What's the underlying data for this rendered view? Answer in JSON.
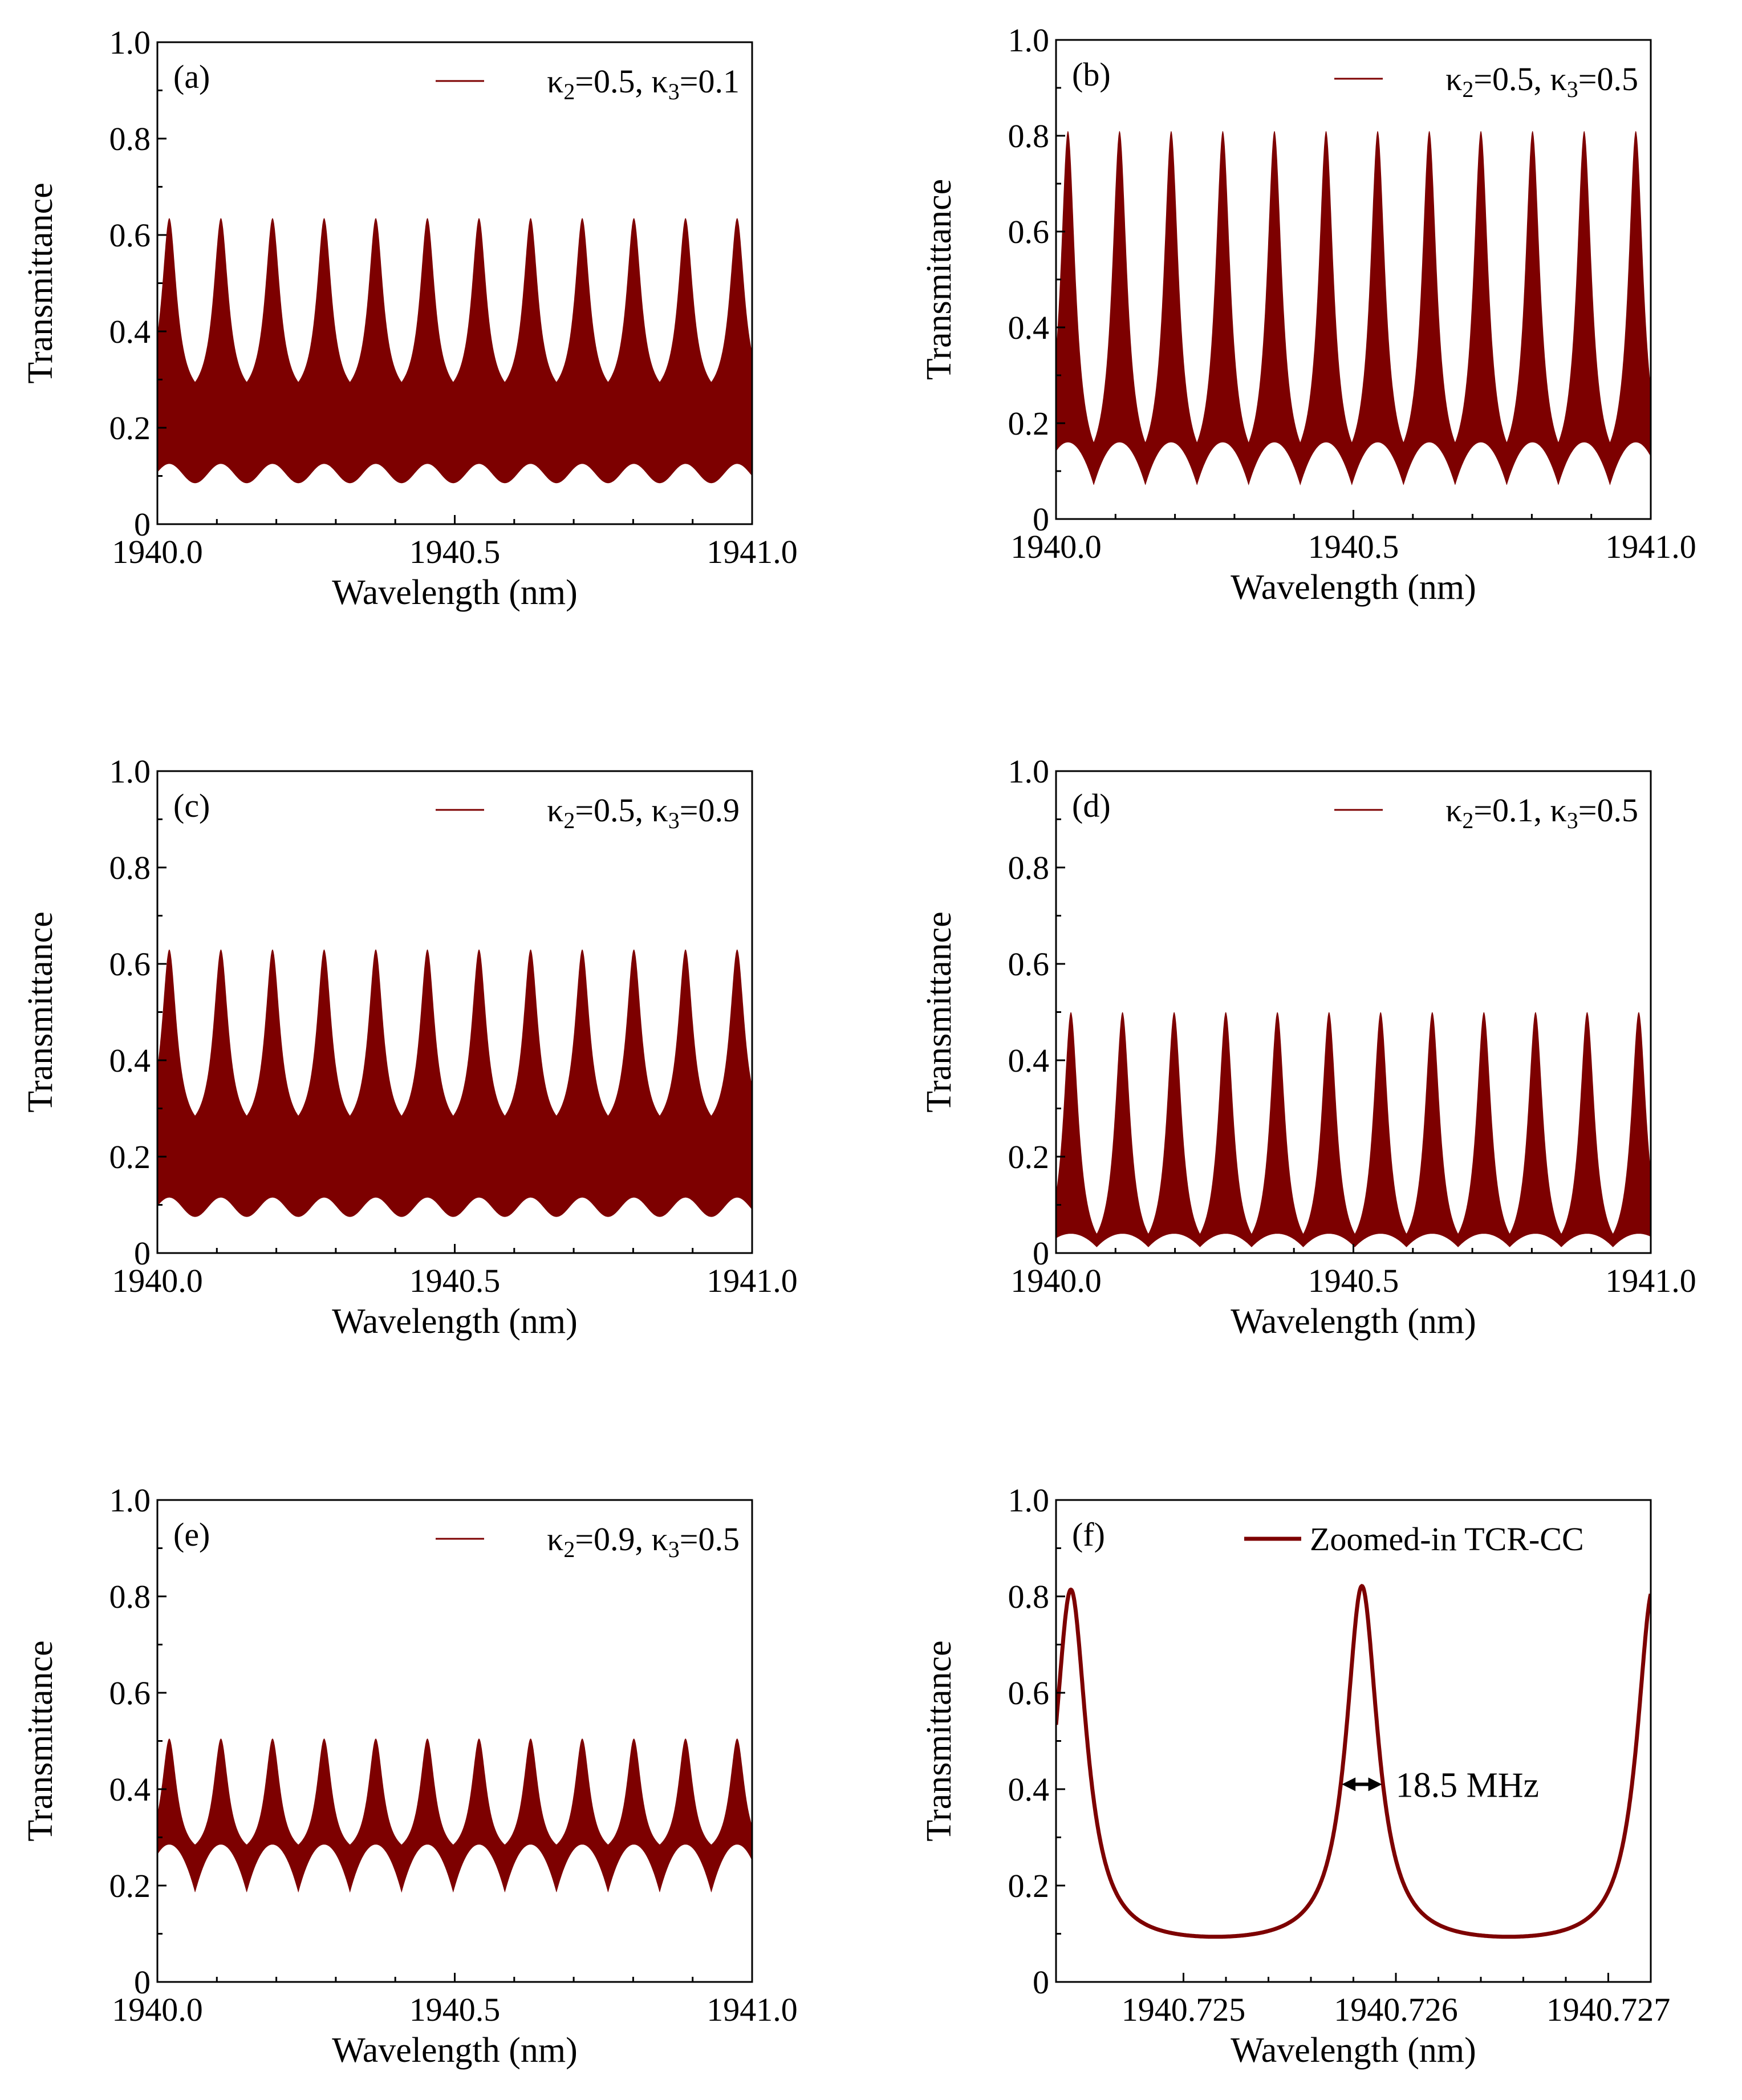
{
  "figure": {
    "line_color": "#7d0000",
    "background": "#ffffff"
  },
  "chart_data": [
    {
      "panel": "(a)",
      "type": "line",
      "title": "",
      "xlabel": "Wavelength (nm)",
      "ylabel": "Transmittance",
      "xlim": [
        1940.0,
        1941.0
      ],
      "ylim": [
        0,
        1.0
      ],
      "xticks": [
        "1940.0",
        "1940.5",
        "1941.0"
      ],
      "yticks": [
        "0",
        "0.2",
        "0.4",
        "0.6",
        "0.8",
        "1.0"
      ],
      "legend": {
        "pre": "κ",
        "sub1": "2",
        "mid": "=0.5, κ",
        "sub2": "3",
        "post": "=0.1"
      },
      "series": [
        {
          "name": "κ2=0.5, κ3=0.1",
          "fill": "dense-oscillation",
          "peaks_count": 12,
          "first_peak_x": 1940.02,
          "period": 0.0868,
          "upper": {
            "peak": 0.635,
            "valley": 0.295,
            "shape": "sharp"
          },
          "lower": {
            "peak": 0.125,
            "valley": 0.085,
            "shape": "smooth"
          }
        }
      ]
    },
    {
      "panel": "(b)",
      "type": "line",
      "title": "",
      "xlabel": "Wavelength (nm)",
      "ylabel": "Transmittance",
      "xlim": [
        1940.0,
        1941.0
      ],
      "ylim": [
        0,
        1.0
      ],
      "xticks": [
        "1940.0",
        "1940.5",
        "1941.0"
      ],
      "yticks": [
        "0",
        "0.2",
        "0.4",
        "0.6",
        "0.8",
        "1.0"
      ],
      "legend": {
        "pre": "κ",
        "sub1": "2",
        "mid": "=0.5, κ",
        "sub2": "3",
        "post": "=0.5"
      },
      "series": [
        {
          "name": "κ2=0.5, κ3=0.5",
          "fill": "dense-oscillation",
          "peaks_count": 12,
          "first_peak_x": 1940.02,
          "period": 0.0868,
          "upper": {
            "peak": 0.81,
            "valley": 0.16,
            "shape": "sharp"
          },
          "lower": {
            "peak": 0.16,
            "valley": 0.07,
            "shape": "sharp-valley"
          }
        }
      ]
    },
    {
      "panel": "(c)",
      "type": "line",
      "title": "",
      "xlabel": "Wavelength (nm)",
      "ylabel": "Transmittance",
      "xlim": [
        1940.0,
        1941.0
      ],
      "ylim": [
        0,
        1.0
      ],
      "xticks": [
        "1940.0",
        "1940.5",
        "1941.0"
      ],
      "yticks": [
        "0",
        "0.2",
        "0.4",
        "0.6",
        "0.8",
        "1.0"
      ],
      "legend": {
        "pre": "κ",
        "sub1": "2",
        "mid": "=0.5, κ",
        "sub2": "3",
        "post": "=0.9"
      },
      "series": [
        {
          "name": "κ2=0.5, κ3=0.9",
          "fill": "dense-oscillation",
          "peaks_count": 12,
          "first_peak_x": 1940.02,
          "period": 0.0868,
          "upper": {
            "peak": 0.63,
            "valley": 0.285,
            "shape": "sharp"
          },
          "lower": {
            "peak": 0.115,
            "valley": 0.075,
            "shape": "smooth"
          }
        }
      ]
    },
    {
      "panel": "(d)",
      "type": "line",
      "title": "",
      "xlabel": "Wavelength (nm)",
      "ylabel": "Transmittance",
      "xlim": [
        1940.0,
        1941.0
      ],
      "ylim": [
        0,
        1.0
      ],
      "xticks": [
        "1940.0",
        "1940.5",
        "1941.0"
      ],
      "yticks": [
        "0",
        "0.2",
        "0.4",
        "0.6",
        "0.8",
        "1.0"
      ],
      "legend": {
        "pre": "κ",
        "sub1": "2",
        "mid": "=0.1, κ",
        "sub2": "3",
        "post": "=0.5"
      },
      "series": [
        {
          "name": "κ2=0.1, κ3=0.5",
          "fill": "dense-oscillation",
          "peaks_count": 12,
          "first_peak_x": 1940.025,
          "period": 0.0868,
          "upper": {
            "peak": 0.5,
            "valley": 0.04,
            "shape": "sharp"
          },
          "lower": {
            "peak": 0.04,
            "valley": 0.012,
            "shape": "sharp-valley"
          }
        }
      ]
    },
    {
      "panel": "(e)",
      "type": "line",
      "title": "",
      "xlabel": "Wavelength (nm)",
      "ylabel": "Transmittance",
      "xlim": [
        1940.0,
        1941.0
      ],
      "ylim": [
        0,
        1.0
      ],
      "xticks": [
        "1940.0",
        "1940.5",
        "1941.0"
      ],
      "yticks": [
        "0",
        "0.2",
        "0.4",
        "0.6",
        "0.8",
        "1.0"
      ],
      "legend": {
        "pre": "κ",
        "sub1": "2",
        "mid": "=0.9, κ",
        "sub2": "3",
        "post": "=0.5"
      },
      "series": [
        {
          "name": "κ2=0.9, κ3=0.5",
          "fill": "dense-oscillation",
          "peaks_count": 12,
          "first_peak_x": 1940.02,
          "period": 0.0868,
          "upper": {
            "peak": 0.505,
            "valley": 0.285,
            "shape": "sharp"
          },
          "lower": {
            "peak": 0.285,
            "valley": 0.185,
            "shape": "sharp-valley"
          }
        }
      ]
    },
    {
      "panel": "(f)",
      "type": "line",
      "title": "",
      "xlabel": "Wavelength (nm)",
      "ylabel": "Transmittance",
      "xlim": [
        1940.7244,
        1940.7272
      ],
      "ylim": [
        0,
        1.0
      ],
      "xticks": [
        "1940.725",
        "1940.726",
        "1940.727"
      ],
      "xtick_values": [
        1940.725,
        1940.726,
        1940.727
      ],
      "yticks": [
        "0",
        "0.2",
        "0.4",
        "0.6",
        "0.8",
        "1.0"
      ],
      "legend": {
        "text": "Zoomed-in TCR-CC"
      },
      "annotation": {
        "text": "18.5 MHz",
        "y": 0.41
      },
      "series": [
        {
          "name": "Zoomed-in TCR-CC",
          "fill": "line",
          "peak_x": 1940.72584,
          "peak_y": 0.815,
          "next_peak_x": 1940.72721,
          "next_peak_y": 0.81,
          "min_y": 0.067,
          "hwhm": 9e-05
        }
      ]
    }
  ]
}
